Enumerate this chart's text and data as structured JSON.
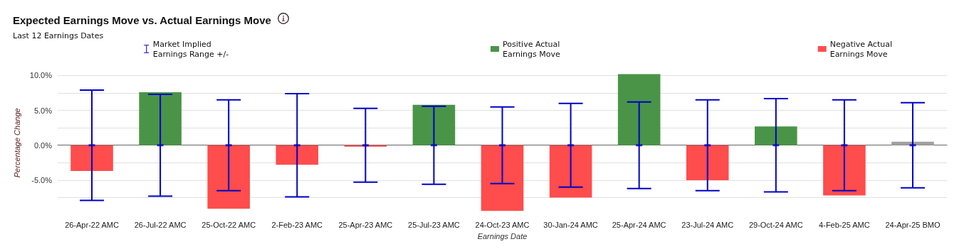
{
  "chart_data": {
    "type": "bar",
    "title": "Expected Earnings Move vs. Actual Earnings Move",
    "subtitle": "Last 12 Earnings Dates",
    "xlabel": "Earnings Date",
    "ylabel": "Percentage Change",
    "categories": [
      "26-Apr-22 AMC",
      "26-Jul-22 AMC",
      "25-Oct-22 AMC",
      "2-Feb-23 AMC",
      "25-Apr-23 AMC",
      "25-Jul-23 AMC",
      "24-Oct-23 AMC",
      "30-Jan-24 AMC",
      "25-Apr-24 AMC",
      "23-Jul-24 AMC",
      "29-Oct-24 AMC",
      "4-Feb-25 AMC",
      "24-Apr-25 BMO"
    ],
    "series": [
      {
        "name": "Market Implied\nEarnings Range +/-",
        "type": "scatter",
        "color": "#0000c8",
        "values": [
          0,
          0,
          0,
          0,
          0,
          0,
          0,
          0,
          0,
          0,
          0,
          0,
          0
        ],
        "errors": [
          7.9,
          7.3,
          6.5,
          7.4,
          5.3,
          5.6,
          5.5,
          6.0,
          6.2,
          6.5,
          6.7,
          6.5,
          6.1
        ]
      },
      {
        "name": "Positive Actual\nEarnings Move",
        "color": "#4a9447",
        "values": [
          null,
          7.6,
          null,
          null,
          null,
          5.8,
          null,
          null,
          10.2,
          null,
          2.7,
          null,
          null
        ]
      },
      {
        "name": "Negative Actual\nEarnings Move",
        "color": "#ff4c4c",
        "values": [
          -3.7,
          null,
          -9.1,
          -2.8,
          -0.2,
          null,
          -9.4,
          -7.5,
          null,
          -5.0,
          null,
          -7.2,
          null
        ]
      },
      {
        "color": "#a0a0a0",
        "values": [
          null,
          null,
          null,
          null,
          null,
          null,
          null,
          null,
          null,
          null,
          null,
          null,
          0.5
        ]
      }
    ],
    "ylim": [
      -9.6,
      10.3
    ],
    "yticks": [
      {
        "value": -7.5,
        "label": null
      },
      {
        "value": -5,
        "label": "-5.0%"
      },
      {
        "value": -2.5,
        "label": null
      },
      {
        "value": 0,
        "label": "0.0%"
      },
      {
        "value": 2.5,
        "label": null
      },
      {
        "value": 5,
        "label": "5.0%"
      },
      {
        "value": 7.5,
        "label": null
      },
      {
        "value": 10,
        "label": "10.0%"
      }
    ],
    "grid": "y",
    "legend": "top"
  }
}
